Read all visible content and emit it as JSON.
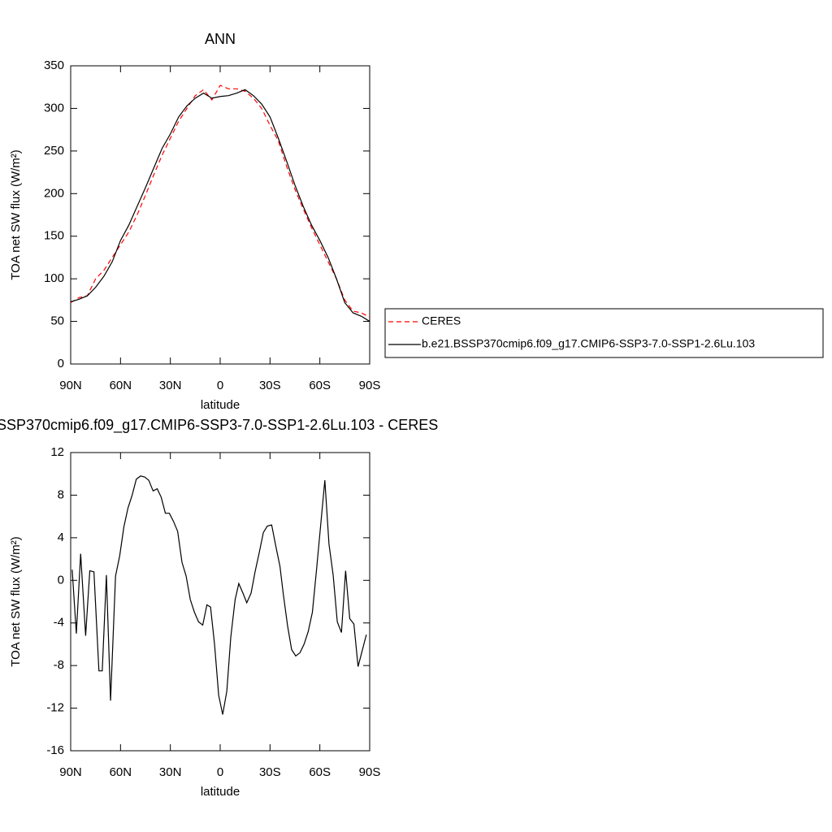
{
  "chart_data": [
    {
      "type": "line",
      "title": "ANN",
      "xlabel": "latitude",
      "ylabel": "TOA net SW flux (W/m²)",
      "x": [
        90,
        85,
        80,
        75,
        70,
        65,
        60,
        55,
        50,
        45,
        40,
        35,
        30,
        25,
        20,
        15,
        10,
        5,
        0,
        -5,
        -10,
        -15,
        -20,
        -25,
        -30,
        -35,
        -40,
        -45,
        -50,
        -55,
        -60,
        -65,
        -70,
        -75,
        -80,
        -85,
        -90
      ],
      "series": [
        {
          "name": "CERES",
          "color": "#ff0000",
          "dashed": true,
          "values": [
            72,
            78,
            80,
            100,
            110,
            125,
            140,
            155,
            175,
            198,
            222,
            245,
            265,
            285,
            300,
            315,
            322,
            310,
            327,
            323,
            323,
            320,
            312,
            300,
            280,
            262,
            232,
            205,
            182,
            160,
            140,
            120,
            100,
            75,
            62,
            60,
            55
          ]
        },
        {
          "name": "b.e21.BSSP370cmip6.f09_g17.CMIP6-SSP3-7.0-SSP1-2.6Lu.103",
          "color": "#000000",
          "dashed": false,
          "values": [
            73,
            76,
            80,
            90,
            103,
            120,
            145,
            163,
            185,
            207,
            230,
            253,
            270,
            290,
            303,
            312,
            318,
            312,
            314,
            315,
            318,
            322,
            315,
            305,
            290,
            265,
            238,
            210,
            185,
            163,
            145,
            125,
            100,
            72,
            60,
            56,
            50
          ]
        }
      ],
      "xlim": [
        90,
        -90
      ],
      "xticks": [
        {
          "value": 90,
          "label": "90N"
        },
        {
          "value": 60,
          "label": "60N"
        },
        {
          "value": 30,
          "label": "30N"
        },
        0,
        {
          "value": -30,
          "label": "30S"
        },
        {
          "value": -60,
          "label": "60S"
        },
        {
          "value": -90,
          "label": "90S"
        }
      ],
      "ylim": [
        0,
        350
      ],
      "yticks": [
        0,
        50,
        100,
        150,
        200,
        250,
        300,
        350
      ],
      "legend": "right"
    },
    {
      "type": "line",
      "title": "SSP370cmip6.f09_g17.CMIP6-SSP3-7.0-SSP1-2.6Lu.103 - CERES",
      "xlabel": "latitude",
      "ylabel": "TOA net SW flux (W/m²)",
      "x": [
        89.1,
        86.6,
        84,
        81,
        78.5,
        76,
        73,
        71,
        68.5,
        66,
        63,
        60.5,
        58,
        55.5,
        53,
        50.5,
        47.9,
        45.4,
        43,
        40.4,
        37.9,
        35.5,
        33,
        30.6,
        28,
        25.6,
        23,
        20.5,
        18,
        15.5,
        13,
        10.5,
        8,
        5.8,
        3.4,
        0.9,
        -1.5,
        -4,
        -6.4,
        -9,
        -11.2,
        -13.7,
        -16,
        -18.6,
        -21,
        -23.5,
        -26,
        -28.4,
        -31,
        -33.5,
        -36,
        -38,
        -40.6,
        -43,
        -45.5,
        -48,
        -50.5,
        -53,
        -55.5,
        -58,
        -60.5,
        -63,
        -65.5,
        -68,
        -70.5,
        -73,
        -75.5,
        -78,
        -80.5,
        -83,
        -85.5,
        -88
      ],
      "series": [
        {
          "name": null,
          "color": "#000000",
          "dashed": false,
          "values": [
            1.0,
            -5,
            2.5,
            -5.2,
            0.9,
            0.8,
            -8.5,
            -8.5,
            0.5,
            -11.3,
            0.4,
            2.3,
            5,
            6.8,
            8,
            9.5,
            9.8,
            9.7,
            9.4,
            8.4,
            8.6,
            7.8,
            6.3,
            6.3,
            5.5,
            4.6,
            1.7,
            0.4,
            -1.8,
            -3,
            -3.9,
            -4.2,
            -2.3,
            -2.5,
            -6,
            -10.8,
            -12.6,
            -10.4,
            -5.3,
            -1.8,
            -0.3,
            -1.2,
            -2.1,
            -1.2,
            0.8,
            2.6,
            4.5,
            5.1,
            5.2,
            3.2,
            1.3,
            -1.3,
            -4.3,
            -6.5,
            -7.1,
            -6.8,
            -6,
            -4.8,
            -3,
            1,
            5.2,
            9.4,
            3.4,
            0.5,
            -3.9,
            -4.9,
            0.9,
            -3.6,
            -4.1,
            -8.1,
            -6.6,
            -5.1
          ]
        }
      ],
      "xlim": [
        90,
        -90
      ],
      "xticks": [
        {
          "value": 90,
          "label": "90N"
        },
        {
          "value": 60,
          "label": "60N"
        },
        {
          "value": 30,
          "label": "30N"
        },
        0,
        {
          "value": -30,
          "label": "30S"
        },
        {
          "value": -60,
          "label": "60S"
        },
        {
          "value": -90,
          "label": "90S"
        }
      ],
      "ylim": [
        -16,
        12
      ],
      "yticks": [
        -16,
        -12,
        -8,
        -4,
        0,
        4,
        8,
        12
      ]
    }
  ]
}
